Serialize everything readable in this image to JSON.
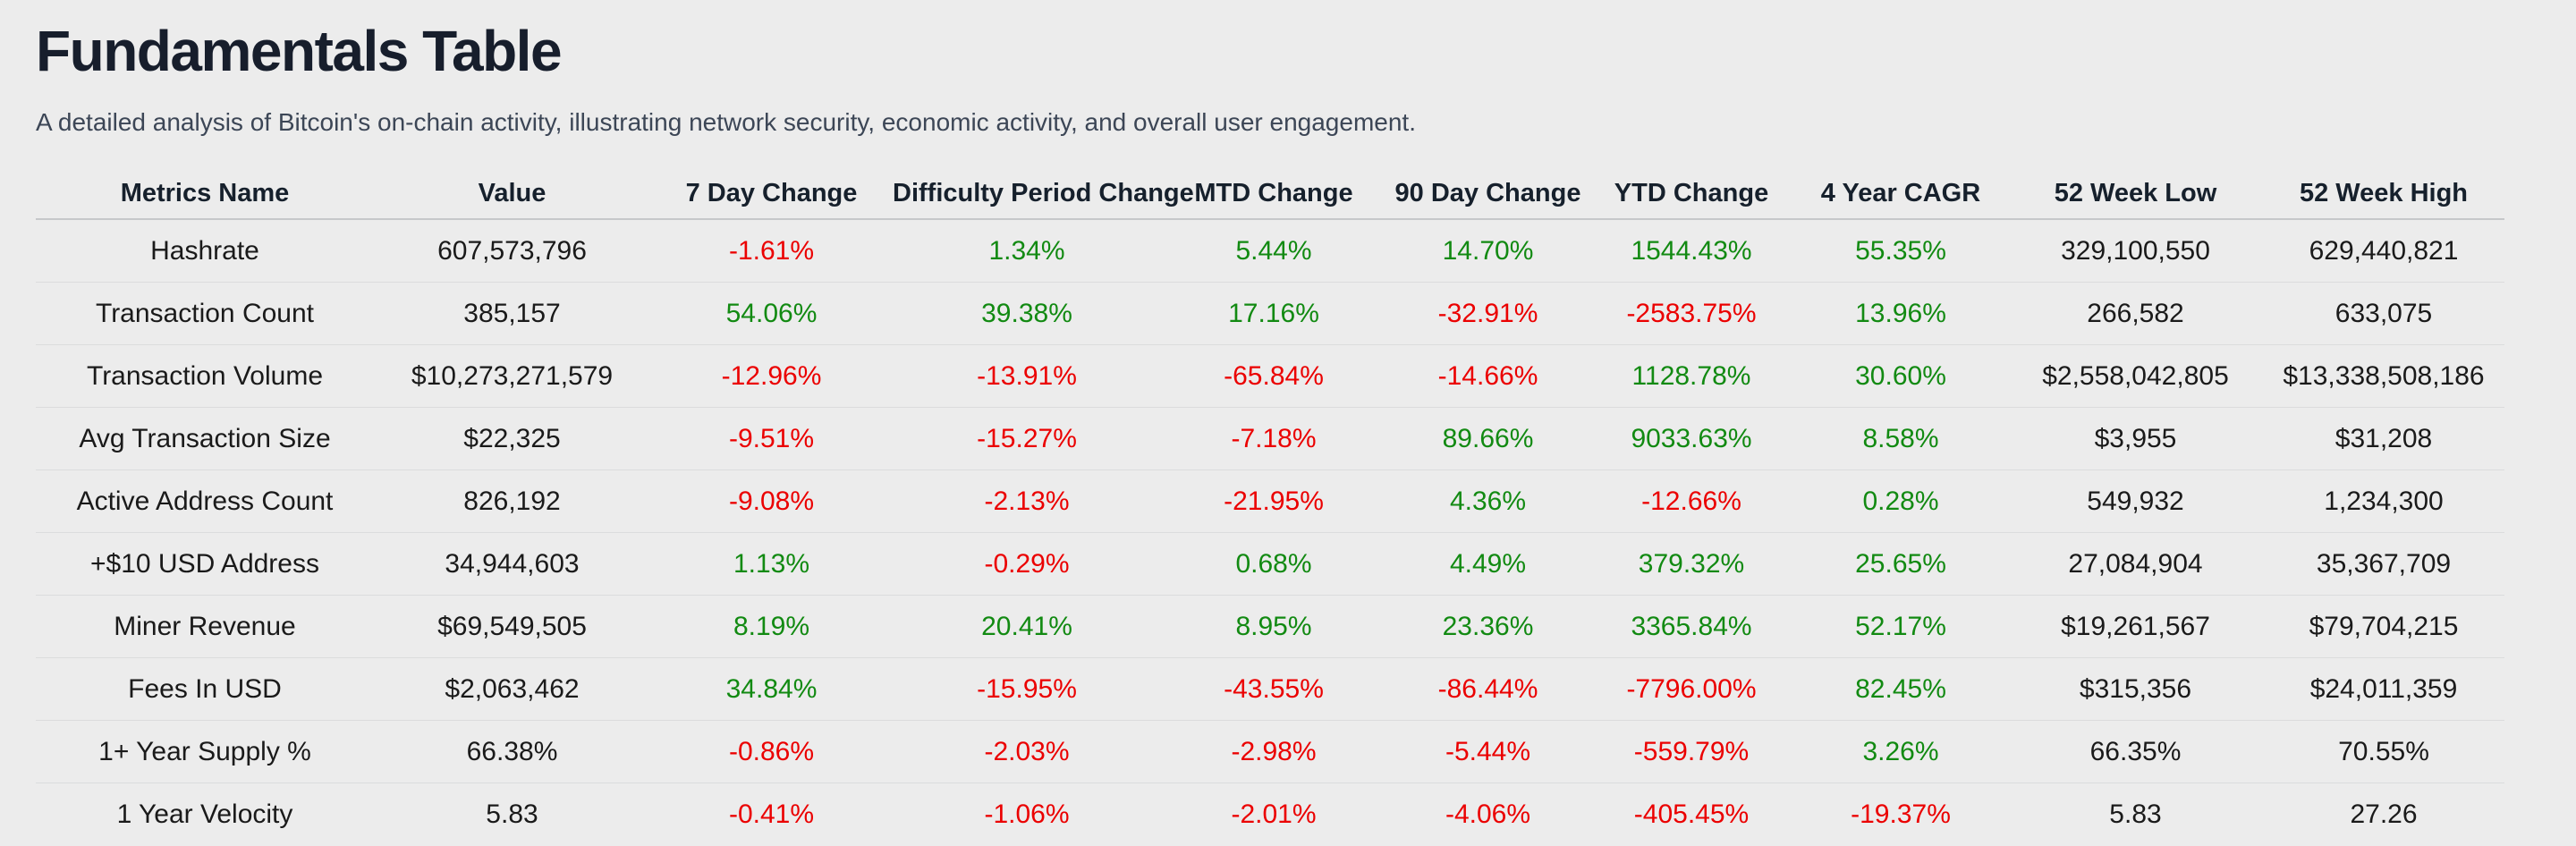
{
  "colors": {
    "positive": "#128a12",
    "negative": "#eb0000",
    "background": "#ececec",
    "title_text": "#171e2c",
    "subtitle_text": "#3c4656"
  },
  "chart_data": {
    "type": "table",
    "title": "Fundamentals Table",
    "subtitle": "A detailed analysis of Bitcoin's on-chain activity, illustrating network security, economic activity, and overall user engagement.",
    "columns": [
      "Metrics Name",
      "Value",
      "7 Day Change",
      "Difficulty Period Change",
      "MTD Change",
      "90 Day Change",
      "YTD Change",
      "4 Year CAGR",
      "52 Week Low",
      "52 Week High"
    ],
    "rows": [
      {
        "cells": [
          {
            "text": "Hashrate",
            "tone": "plain"
          },
          {
            "text": "607,573,796",
            "tone": "plain"
          },
          {
            "text": "-1.61%",
            "tone": "neg"
          },
          {
            "text": "1.34%",
            "tone": "pos"
          },
          {
            "text": "5.44%",
            "tone": "pos"
          },
          {
            "text": "14.70%",
            "tone": "pos"
          },
          {
            "text": "1544.43%",
            "tone": "pos"
          },
          {
            "text": "55.35%",
            "tone": "pos"
          },
          {
            "text": "329,100,550",
            "tone": "plain"
          },
          {
            "text": "629,440,821",
            "tone": "plain"
          }
        ]
      },
      {
        "cells": [
          {
            "text": "Transaction Count",
            "tone": "plain"
          },
          {
            "text": "385,157",
            "tone": "plain"
          },
          {
            "text": "54.06%",
            "tone": "pos"
          },
          {
            "text": "39.38%",
            "tone": "pos"
          },
          {
            "text": "17.16%",
            "tone": "pos"
          },
          {
            "text": "-32.91%",
            "tone": "neg"
          },
          {
            "text": "-2583.75%",
            "tone": "neg"
          },
          {
            "text": "13.96%",
            "tone": "pos"
          },
          {
            "text": "266,582",
            "tone": "plain"
          },
          {
            "text": "633,075",
            "tone": "plain"
          }
        ]
      },
      {
        "cells": [
          {
            "text": "Transaction Volume",
            "tone": "plain"
          },
          {
            "text": "$10,273,271,579",
            "tone": "plain"
          },
          {
            "text": "-12.96%",
            "tone": "neg"
          },
          {
            "text": "-13.91%",
            "tone": "neg"
          },
          {
            "text": "-65.84%",
            "tone": "neg"
          },
          {
            "text": "-14.66%",
            "tone": "neg"
          },
          {
            "text": "1128.78%",
            "tone": "pos"
          },
          {
            "text": "30.60%",
            "tone": "pos"
          },
          {
            "text": "$2,558,042,805",
            "tone": "plain"
          },
          {
            "text": "$13,338,508,186",
            "tone": "plain"
          }
        ]
      },
      {
        "cells": [
          {
            "text": "Avg Transaction Size",
            "tone": "plain"
          },
          {
            "text": "$22,325",
            "tone": "plain"
          },
          {
            "text": "-9.51%",
            "tone": "neg"
          },
          {
            "text": "-15.27%",
            "tone": "neg"
          },
          {
            "text": "-7.18%",
            "tone": "neg"
          },
          {
            "text": "89.66%",
            "tone": "pos"
          },
          {
            "text": "9033.63%",
            "tone": "pos"
          },
          {
            "text": "8.58%",
            "tone": "pos"
          },
          {
            "text": "$3,955",
            "tone": "plain"
          },
          {
            "text": "$31,208",
            "tone": "plain"
          }
        ]
      },
      {
        "cells": [
          {
            "text": "Active Address Count",
            "tone": "plain"
          },
          {
            "text": "826,192",
            "tone": "plain"
          },
          {
            "text": "-9.08%",
            "tone": "neg"
          },
          {
            "text": "-2.13%",
            "tone": "neg"
          },
          {
            "text": "-21.95%",
            "tone": "neg"
          },
          {
            "text": "4.36%",
            "tone": "pos"
          },
          {
            "text": "-12.66%",
            "tone": "neg"
          },
          {
            "text": "0.28%",
            "tone": "pos"
          },
          {
            "text": "549,932",
            "tone": "plain"
          },
          {
            "text": "1,234,300",
            "tone": "plain"
          }
        ]
      },
      {
        "cells": [
          {
            "text": "+$10 USD Address",
            "tone": "plain"
          },
          {
            "text": "34,944,603",
            "tone": "plain"
          },
          {
            "text": "1.13%",
            "tone": "pos"
          },
          {
            "text": "-0.29%",
            "tone": "neg"
          },
          {
            "text": "0.68%",
            "tone": "pos"
          },
          {
            "text": "4.49%",
            "tone": "pos"
          },
          {
            "text": "379.32%",
            "tone": "pos"
          },
          {
            "text": "25.65%",
            "tone": "pos"
          },
          {
            "text": "27,084,904",
            "tone": "plain"
          },
          {
            "text": "35,367,709",
            "tone": "plain"
          }
        ]
      },
      {
        "cells": [
          {
            "text": "Miner Revenue",
            "tone": "plain"
          },
          {
            "text": "$69,549,505",
            "tone": "plain"
          },
          {
            "text": "8.19%",
            "tone": "pos"
          },
          {
            "text": "20.41%",
            "tone": "pos"
          },
          {
            "text": "8.95%",
            "tone": "pos"
          },
          {
            "text": "23.36%",
            "tone": "pos"
          },
          {
            "text": "3365.84%",
            "tone": "pos"
          },
          {
            "text": "52.17%",
            "tone": "pos"
          },
          {
            "text": "$19,261,567",
            "tone": "plain"
          },
          {
            "text": "$79,704,215",
            "tone": "plain"
          }
        ]
      },
      {
        "cells": [
          {
            "text": "Fees In USD",
            "tone": "plain"
          },
          {
            "text": "$2,063,462",
            "tone": "plain"
          },
          {
            "text": "34.84%",
            "tone": "pos"
          },
          {
            "text": "-15.95%",
            "tone": "neg"
          },
          {
            "text": "-43.55%",
            "tone": "neg"
          },
          {
            "text": "-86.44%",
            "tone": "neg"
          },
          {
            "text": "-7796.00%",
            "tone": "neg"
          },
          {
            "text": "82.45%",
            "tone": "pos"
          },
          {
            "text": "$315,356",
            "tone": "plain"
          },
          {
            "text": "$24,011,359",
            "tone": "plain"
          }
        ]
      },
      {
        "cells": [
          {
            "text": "1+ Year Supply %",
            "tone": "plain"
          },
          {
            "text": "66.38%",
            "tone": "plain"
          },
          {
            "text": "-0.86%",
            "tone": "neg"
          },
          {
            "text": "-2.03%",
            "tone": "neg"
          },
          {
            "text": "-2.98%",
            "tone": "neg"
          },
          {
            "text": "-5.44%",
            "tone": "neg"
          },
          {
            "text": "-559.79%",
            "tone": "neg"
          },
          {
            "text": "3.26%",
            "tone": "pos"
          },
          {
            "text": "66.35%",
            "tone": "plain"
          },
          {
            "text": "70.55%",
            "tone": "plain"
          }
        ]
      },
      {
        "cells": [
          {
            "text": "1 Year Velocity",
            "tone": "plain"
          },
          {
            "text": "5.83",
            "tone": "plain"
          },
          {
            "text": "-0.41%",
            "tone": "neg"
          },
          {
            "text": "-1.06%",
            "tone": "neg"
          },
          {
            "text": "-2.01%",
            "tone": "neg"
          },
          {
            "text": "-4.06%",
            "tone": "neg"
          },
          {
            "text": "-405.45%",
            "tone": "neg"
          },
          {
            "text": "-19.37%",
            "tone": "neg"
          },
          {
            "text": "5.83",
            "tone": "plain"
          },
          {
            "text": "27.26",
            "tone": "plain"
          }
        ]
      }
    ]
  }
}
